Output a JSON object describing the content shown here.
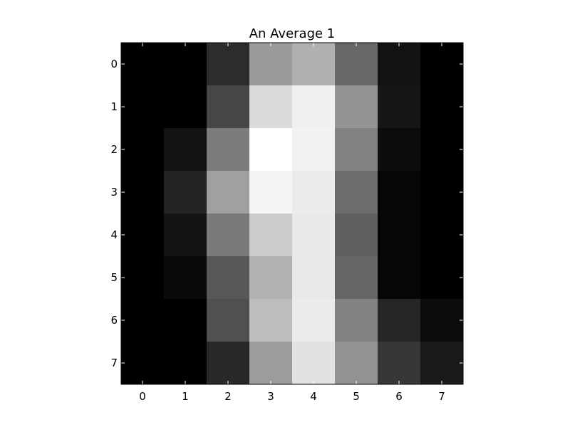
{
  "chart_data": {
    "type": "heatmap",
    "title": "An Average 1",
    "xlabel": "",
    "ylabel": "",
    "x_ticks": [
      "0",
      "1",
      "2",
      "3",
      "4",
      "5",
      "6",
      "7"
    ],
    "y_ticks": [
      "0",
      "1",
      "2",
      "3",
      "4",
      "5",
      "6",
      "7"
    ],
    "colormap": "gray",
    "grid": false,
    "values": [
      [
        0,
        0,
        44,
        155,
        176,
        104,
        18,
        0
      ],
      [
        0,
        0,
        70,
        219,
        240,
        148,
        22,
        0
      ],
      [
        0,
        18,
        124,
        255,
        242,
        130,
        12,
        0
      ],
      [
        0,
        36,
        160,
        245,
        235,
        108,
        6,
        0
      ],
      [
        0,
        20,
        122,
        203,
        233,
        96,
        6,
        0
      ],
      [
        0,
        10,
        88,
        177,
        232,
        101,
        6,
        0
      ],
      [
        0,
        0,
        80,
        190,
        235,
        131,
        38,
        13
      ],
      [
        0,
        0,
        40,
        156,
        225,
        146,
        55,
        26
      ]
    ]
  }
}
